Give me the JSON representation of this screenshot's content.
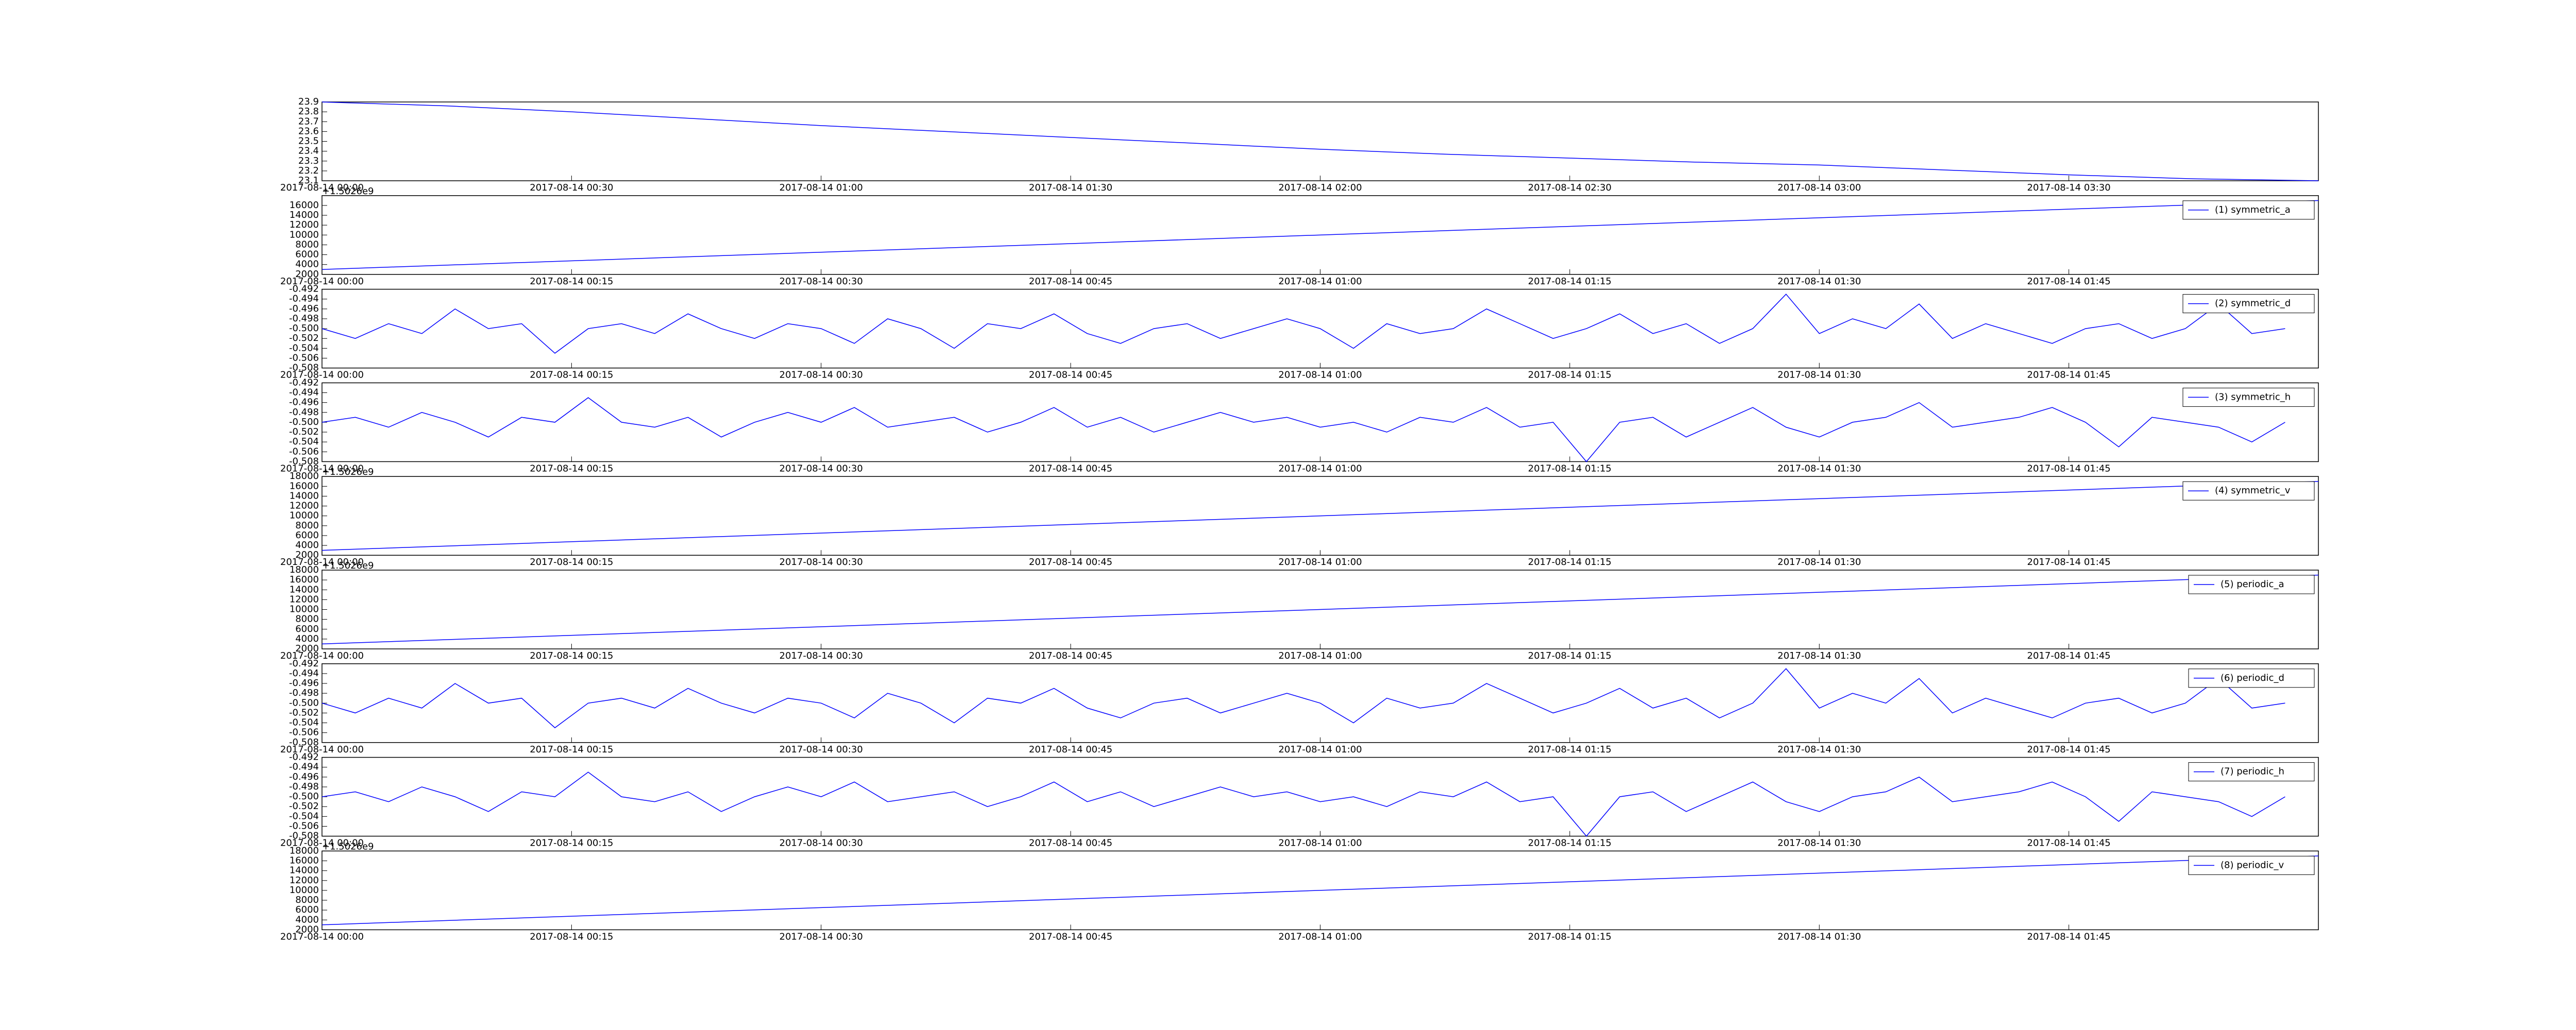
{
  "chart_data": [
    {
      "type": "line",
      "series": [
        {
          "color": "#0000ff",
          "values": [
            23.9,
            23.86,
            23.8,
            23.73,
            23.66,
            23.6,
            23.54,
            23.48,
            23.42,
            23.37,
            23.33,
            23.29,
            23.26,
            23.21,
            23.16,
            23.12,
            23.1
          ]
        }
      ],
      "x": [
        "2017-08-14 00:00",
        "2017-08-14 00:15",
        "2017-08-14 00:30",
        "2017-08-14 00:45",
        "2017-08-14 01:00",
        "2017-08-14 01:15",
        "2017-08-14 01:30",
        "2017-08-14 01:45",
        "2017-08-14 02:00",
        "2017-08-14 02:15",
        "2017-08-14 02:30",
        "2017-08-14 02:45",
        "2017-08-14 03:00",
        "2017-08-14 03:15",
        "2017-08-14 03:30",
        "2017-08-14 03:45",
        "2017-08-14 04:00"
      ],
      "xlim": [
        "2017-08-14 00:00",
        "2017-08-14 04:00"
      ],
      "xticks": [
        "2017-08-14 00:00",
        "2017-08-14 00:30",
        "2017-08-14 01:00",
        "2017-08-14 01:30",
        "2017-08-14 02:00",
        "2017-08-14 02:30",
        "2017-08-14 03:00",
        "2017-08-14 03:30"
      ],
      "ylim": [
        23.1,
        23.9
      ],
      "yticks": [
        23.1,
        23.2,
        23.3,
        23.4,
        23.5,
        23.6,
        23.7,
        23.8,
        23.9
      ]
    },
    {
      "type": "line",
      "offset_text": "+1.5026e9",
      "legend": "upper right",
      "series": [
        {
          "name": "(1) symmetric_a",
          "color": "#0000ff",
          "values": [
            3000,
            17000
          ]
        }
      ],
      "x": [
        "2017-08-14 00:00",
        "2017-08-14 02:00"
      ],
      "xlim": [
        "2017-08-14 00:00",
        "2017-08-14 02:00"
      ],
      "xticks": [
        "2017-08-14 00:00",
        "2017-08-14 00:15",
        "2017-08-14 00:30",
        "2017-08-14 00:45",
        "2017-08-14 01:00",
        "2017-08-14 01:15",
        "2017-08-14 01:30",
        "2017-08-14 01:45"
      ],
      "ylim": [
        2000,
        18000
      ],
      "yticks": [
        2000,
        4000,
        6000,
        8000,
        10000,
        12000,
        14000,
        16000
      ]
    },
    {
      "type": "line",
      "legend": "upper right",
      "series": [
        {
          "name": "(2) symmetric_d",
          "color": "#0000ff",
          "values": [
            -0.5,
            -0.502,
            -0.499,
            -0.501,
            -0.496,
            -0.5,
            -0.499,
            -0.505,
            -0.5,
            -0.499,
            -0.501,
            -0.497,
            -0.5,
            -0.502,
            -0.499,
            -0.5,
            -0.503,
            -0.498,
            -0.5,
            -0.504,
            -0.499,
            -0.5,
            -0.497,
            -0.501,
            -0.503,
            -0.5,
            -0.499,
            -0.502,
            -0.5,
            -0.498,
            -0.5,
            -0.504,
            -0.499,
            -0.501,
            -0.5,
            -0.496,
            -0.499,
            -0.502,
            -0.5,
            -0.497,
            -0.501,
            -0.499,
            -0.503,
            -0.5,
            -0.493,
            -0.501,
            -0.498,
            -0.5,
            -0.495,
            -0.502,
            -0.499,
            -0.501,
            -0.503,
            -0.5,
            -0.499,
            -0.502,
            -0.5,
            -0.495,
            -0.501,
            -0.5
          ]
        }
      ],
      "x": [
        "2017-08-14 00:00",
        "2017-08-14 00:02",
        "2017-08-14 00:04",
        "2017-08-14 00:06",
        "2017-08-14 00:08",
        "2017-08-14 00:10",
        "2017-08-14 00:12",
        "2017-08-14 00:14",
        "2017-08-14 00:16",
        "2017-08-14 00:18",
        "2017-08-14 00:20",
        "2017-08-14 00:22",
        "2017-08-14 00:24",
        "2017-08-14 00:26",
        "2017-08-14 00:28",
        "2017-08-14 00:30",
        "2017-08-14 00:32",
        "2017-08-14 00:34",
        "2017-08-14 00:36",
        "2017-08-14 00:38",
        "2017-08-14 00:40",
        "2017-08-14 00:42",
        "2017-08-14 00:44",
        "2017-08-14 00:46",
        "2017-08-14 00:48",
        "2017-08-14 00:50",
        "2017-08-14 00:52",
        "2017-08-14 00:54",
        "2017-08-14 00:56",
        "2017-08-14 00:58",
        "2017-08-14 01:00",
        "2017-08-14 01:02",
        "2017-08-14 01:04",
        "2017-08-14 01:06",
        "2017-08-14 01:08",
        "2017-08-14 01:10",
        "2017-08-14 01:12",
        "2017-08-14 01:14",
        "2017-08-14 01:16",
        "2017-08-14 01:18",
        "2017-08-14 01:20",
        "2017-08-14 01:22",
        "2017-08-14 01:24",
        "2017-08-14 01:26",
        "2017-08-14 01:28",
        "2017-08-14 01:30",
        "2017-08-14 01:32",
        "2017-08-14 01:34",
        "2017-08-14 01:36",
        "2017-08-14 01:38",
        "2017-08-14 01:40",
        "2017-08-14 01:42",
        "2017-08-14 01:44",
        "2017-08-14 01:46",
        "2017-08-14 01:48",
        "2017-08-14 01:50",
        "2017-08-14 01:52",
        "2017-08-14 01:54",
        "2017-08-14 01:56",
        "2017-08-14 01:58"
      ],
      "xlim": [
        "2017-08-14 00:00",
        "2017-08-14 02:00"
      ],
      "xticks": [
        "2017-08-14 00:00",
        "2017-08-14 00:15",
        "2017-08-14 00:30",
        "2017-08-14 00:45",
        "2017-08-14 01:00",
        "2017-08-14 01:15",
        "2017-08-14 01:30",
        "2017-08-14 01:45"
      ],
      "ylim": [
        -0.508,
        -0.492
      ],
      "yticks": [
        -0.508,
        -0.506,
        -0.504,
        -0.502,
        {
          "value": -0.5,
          "label": "-0.500"
        },
        -0.498,
        -0.496,
        -0.494,
        -0.492
      ]
    },
    {
      "type": "line",
      "legend": "upper right",
      "series": [
        {
          "name": "(3) symmetric_h",
          "color": "#0000ff",
          "values": [
            -0.5,
            -0.499,
            -0.501,
            -0.498,
            -0.5,
            -0.503,
            -0.499,
            -0.5,
            -0.495,
            -0.5,
            -0.501,
            -0.499,
            -0.503,
            -0.5,
            -0.498,
            -0.5,
            -0.497,
            -0.501,
            -0.5,
            -0.499,
            -0.502,
            -0.5,
            -0.497,
            -0.501,
            -0.499,
            -0.502,
            -0.5,
            -0.498,
            -0.5,
            -0.499,
            -0.501,
            -0.5,
            -0.502,
            -0.499,
            -0.5,
            -0.497,
            -0.501,
            -0.5,
            -0.508,
            -0.5,
            -0.499,
            -0.503,
            -0.5,
            -0.497,
            -0.501,
            -0.503,
            -0.5,
            -0.499,
            -0.496,
            -0.501,
            -0.5,
            -0.499,
            -0.497,
            -0.5,
            -0.505,
            -0.499,
            -0.5,
            -0.501,
            -0.504,
            -0.5
          ]
        }
      ],
      "x": [
        "2017-08-14 00:00",
        "2017-08-14 00:02",
        "2017-08-14 00:04",
        "2017-08-14 00:06",
        "2017-08-14 00:08",
        "2017-08-14 00:10",
        "2017-08-14 00:12",
        "2017-08-14 00:14",
        "2017-08-14 00:16",
        "2017-08-14 00:18",
        "2017-08-14 00:20",
        "2017-08-14 00:22",
        "2017-08-14 00:24",
        "2017-08-14 00:26",
        "2017-08-14 00:28",
        "2017-08-14 00:30",
        "2017-08-14 00:32",
        "2017-08-14 00:34",
        "2017-08-14 00:36",
        "2017-08-14 00:38",
        "2017-08-14 00:40",
        "2017-08-14 00:42",
        "2017-08-14 00:44",
        "2017-08-14 00:46",
        "2017-08-14 00:48",
        "2017-08-14 00:50",
        "2017-08-14 00:52",
        "2017-08-14 00:54",
        "2017-08-14 00:56",
        "2017-08-14 00:58",
        "2017-08-14 01:00",
        "2017-08-14 01:02",
        "2017-08-14 01:04",
        "2017-08-14 01:06",
        "2017-08-14 01:08",
        "2017-08-14 01:10",
        "2017-08-14 01:12",
        "2017-08-14 01:14",
        "2017-08-14 01:16",
        "2017-08-14 01:18",
        "2017-08-14 01:20",
        "2017-08-14 01:22",
        "2017-08-14 01:24",
        "2017-08-14 01:26",
        "2017-08-14 01:28",
        "2017-08-14 01:30",
        "2017-08-14 01:32",
        "2017-08-14 01:34",
        "2017-08-14 01:36",
        "2017-08-14 01:38",
        "2017-08-14 01:40",
        "2017-08-14 01:42",
        "2017-08-14 01:44",
        "2017-08-14 01:46",
        "2017-08-14 01:48",
        "2017-08-14 01:50",
        "2017-08-14 01:52",
        "2017-08-14 01:54",
        "2017-08-14 01:56",
        "2017-08-14 01:58"
      ],
      "xlim": [
        "2017-08-14 00:00",
        "2017-08-14 02:00"
      ],
      "xticks": [
        "2017-08-14 00:00",
        "2017-08-14 00:15",
        "2017-08-14 00:30",
        "2017-08-14 00:45",
        "2017-08-14 01:00",
        "2017-08-14 01:15",
        "2017-08-14 01:30",
        "2017-08-14 01:45"
      ],
      "ylim": [
        -0.508,
        -0.492
      ],
      "yticks": [
        -0.508,
        -0.506,
        -0.504,
        -0.502,
        {
          "value": -0.5,
          "label": "-0.500"
        },
        -0.498,
        -0.496,
        -0.494,
        -0.492
      ]
    },
    {
      "type": "line",
      "offset_text": "+1.5026e9",
      "legend": "upper right",
      "series": [
        {
          "name": "(4) symmetric_v",
          "color": "#0000ff",
          "values": [
            3000,
            17000
          ]
        }
      ],
      "x": [
        "2017-08-14 00:00",
        "2017-08-14 02:00"
      ],
      "xlim": [
        "2017-08-14 00:00",
        "2017-08-14 02:00"
      ],
      "xticks": [
        "2017-08-14 00:00",
        "2017-08-14 00:15",
        "2017-08-14 00:30",
        "2017-08-14 00:45",
        "2017-08-14 01:00",
        "2017-08-14 01:15",
        "2017-08-14 01:30",
        "2017-08-14 01:45"
      ],
      "ylim": [
        2000,
        18000
      ],
      "yticks": [
        2000,
        4000,
        6000,
        8000,
        10000,
        12000,
        14000,
        16000,
        18000
      ]
    },
    {
      "type": "line",
      "offset_text": "+1.5026e9",
      "legend": "upper right",
      "series": [
        {
          "name": "(5) periodic_a",
          "color": "#0000ff",
          "values": [
            3000,
            17000
          ]
        }
      ],
      "x": [
        "2017-08-14 00:00",
        "2017-08-14 02:00"
      ],
      "xlim": [
        "2017-08-14 00:00",
        "2017-08-14 02:00"
      ],
      "xticks": [
        "2017-08-14 00:00",
        "2017-08-14 00:15",
        "2017-08-14 00:30",
        "2017-08-14 00:45",
        "2017-08-14 01:00",
        "2017-08-14 01:15",
        "2017-08-14 01:30",
        "2017-08-14 01:45"
      ],
      "ylim": [
        2000,
        18000
      ],
      "yticks": [
        2000,
        4000,
        6000,
        8000,
        10000,
        12000,
        14000,
        16000,
        18000
      ]
    },
    {
      "type": "line",
      "legend": "upper right",
      "series": [
        {
          "name": "(6) periodic_d",
          "color": "#0000ff",
          "values": [
            -0.5,
            -0.502,
            -0.499,
            -0.501,
            -0.496,
            -0.5,
            -0.499,
            -0.505,
            -0.5,
            -0.499,
            -0.501,
            -0.497,
            -0.5,
            -0.502,
            -0.499,
            -0.5,
            -0.503,
            -0.498,
            -0.5,
            -0.504,
            -0.499,
            -0.5,
            -0.497,
            -0.501,
            -0.503,
            -0.5,
            -0.499,
            -0.502,
            -0.5,
            -0.498,
            -0.5,
            -0.504,
            -0.499,
            -0.501,
            -0.5,
            -0.496,
            -0.499,
            -0.502,
            -0.5,
            -0.497,
            -0.501,
            -0.499,
            -0.503,
            -0.5,
            -0.493,
            -0.501,
            -0.498,
            -0.5,
            -0.495,
            -0.502,
            -0.499,
            -0.501,
            -0.503,
            -0.5,
            -0.499,
            -0.502,
            -0.5,
            -0.495,
            -0.501,
            -0.5
          ]
        }
      ],
      "x": [
        "2017-08-14 00:00",
        "2017-08-14 00:02",
        "2017-08-14 00:04",
        "2017-08-14 00:06",
        "2017-08-14 00:08",
        "2017-08-14 00:10",
        "2017-08-14 00:12",
        "2017-08-14 00:14",
        "2017-08-14 00:16",
        "2017-08-14 00:18",
        "2017-08-14 00:20",
        "2017-08-14 00:22",
        "2017-08-14 00:24",
        "2017-08-14 00:26",
        "2017-08-14 00:28",
        "2017-08-14 00:30",
        "2017-08-14 00:32",
        "2017-08-14 00:34",
        "2017-08-14 00:36",
        "2017-08-14 00:38",
        "2017-08-14 00:40",
        "2017-08-14 00:42",
        "2017-08-14 00:44",
        "2017-08-14 00:46",
        "2017-08-14 00:48",
        "2017-08-14 00:50",
        "2017-08-14 00:52",
        "2017-08-14 00:54",
        "2017-08-14 00:56",
        "2017-08-14 00:58",
        "2017-08-14 01:00",
        "2017-08-14 01:02",
        "2017-08-14 01:04",
        "2017-08-14 01:06",
        "2017-08-14 01:08",
        "2017-08-14 01:10",
        "2017-08-14 01:12",
        "2017-08-14 01:14",
        "2017-08-14 01:16",
        "2017-08-14 01:18",
        "2017-08-14 01:20",
        "2017-08-14 01:22",
        "2017-08-14 01:24",
        "2017-08-14 01:26",
        "2017-08-14 01:28",
        "2017-08-14 01:30",
        "2017-08-14 01:32",
        "2017-08-14 01:34",
        "2017-08-14 01:36",
        "2017-08-14 01:38",
        "2017-08-14 01:40",
        "2017-08-14 01:42",
        "2017-08-14 01:44",
        "2017-08-14 01:46",
        "2017-08-14 01:48",
        "2017-08-14 01:50",
        "2017-08-14 01:52",
        "2017-08-14 01:54",
        "2017-08-14 01:56",
        "2017-08-14 01:58"
      ],
      "xlim": [
        "2017-08-14 00:00",
        "2017-08-14 02:00"
      ],
      "xticks": [
        "2017-08-14 00:00",
        "2017-08-14 00:15",
        "2017-08-14 00:30",
        "2017-08-14 00:45",
        "2017-08-14 01:00",
        "2017-08-14 01:15",
        "2017-08-14 01:30",
        "2017-08-14 01:45"
      ],
      "ylim": [
        -0.508,
        -0.492
      ],
      "yticks": [
        -0.508,
        -0.506,
        -0.504,
        -0.502,
        {
          "value": -0.5,
          "label": "-0.500"
        },
        -0.498,
        -0.496,
        -0.494,
        -0.492
      ]
    },
    {
      "type": "line",
      "legend": "upper right",
      "series": [
        {
          "name": "(7) periodic_h",
          "color": "#0000ff",
          "values": [
            -0.5,
            -0.499,
            -0.501,
            -0.498,
            -0.5,
            -0.503,
            -0.499,
            -0.5,
            -0.495,
            -0.5,
            -0.501,
            -0.499,
            -0.503,
            -0.5,
            -0.498,
            -0.5,
            -0.497,
            -0.501,
            -0.5,
            -0.499,
            -0.502,
            -0.5,
            -0.497,
            -0.501,
            -0.499,
            -0.502,
            -0.5,
            -0.498,
            -0.5,
            -0.499,
            -0.501,
            -0.5,
            -0.502,
            -0.499,
            -0.5,
            -0.497,
            -0.501,
            -0.5,
            -0.508,
            -0.5,
            -0.499,
            -0.503,
            -0.5,
            -0.497,
            -0.501,
            -0.503,
            -0.5,
            -0.499,
            -0.496,
            -0.501,
            -0.5,
            -0.499,
            -0.497,
            -0.5,
            -0.505,
            -0.499,
            -0.5,
            -0.501,
            -0.504,
            -0.5
          ]
        }
      ],
      "x": [
        "2017-08-14 00:00",
        "2017-08-14 00:02",
        "2017-08-14 00:04",
        "2017-08-14 00:06",
        "2017-08-14 00:08",
        "2017-08-14 00:10",
        "2017-08-14 00:12",
        "2017-08-14 00:14",
        "2017-08-14 00:16",
        "2017-08-14 00:18",
        "2017-08-14 00:20",
        "2017-08-14 00:22",
        "2017-08-14 00:24",
        "2017-08-14 00:26",
        "2017-08-14 00:28",
        "2017-08-14 00:30",
        "2017-08-14 00:32",
        "2017-08-14 00:34",
        "2017-08-14 00:36",
        "2017-08-14 00:38",
        "2017-08-14 00:40",
        "2017-08-14 00:42",
        "2017-08-14 00:44",
        "2017-08-14 00:46",
        "2017-08-14 00:48",
        "2017-08-14 00:50",
        "2017-08-14 00:52",
        "2017-08-14 00:54",
        "2017-08-14 00:56",
        "2017-08-14 00:58",
        "2017-08-14 01:00",
        "2017-08-14 01:02",
        "2017-08-14 01:04",
        "2017-08-14 01:06",
        "2017-08-14 01:08",
        "2017-08-14 01:10",
        "2017-08-14 01:12",
        "2017-08-14 01:14",
        "2017-08-14 01:16",
        "2017-08-14 01:18",
        "2017-08-14 01:20",
        "2017-08-14 01:22",
        "2017-08-14 01:24",
        "2017-08-14 01:26",
        "2017-08-14 01:28",
        "2017-08-14 01:30",
        "2017-08-14 01:32",
        "2017-08-14 01:34",
        "2017-08-14 01:36",
        "2017-08-14 01:38",
        "2017-08-14 01:40",
        "2017-08-14 01:42",
        "2017-08-14 01:44",
        "2017-08-14 01:46",
        "2017-08-14 01:48",
        "2017-08-14 01:50",
        "2017-08-14 01:52",
        "2017-08-14 01:54",
        "2017-08-14 01:56",
        "2017-08-14 01:58"
      ],
      "xlim": [
        "2017-08-14 00:00",
        "2017-08-14 02:00"
      ],
      "xticks": [
        "2017-08-14 00:00",
        "2017-08-14 00:15",
        "2017-08-14 00:30",
        "2017-08-14 00:45",
        "2017-08-14 01:00",
        "2017-08-14 01:15",
        "2017-08-14 01:30",
        "2017-08-14 01:45"
      ],
      "ylim": [
        -0.508,
        -0.492
      ],
      "yticks": [
        -0.508,
        -0.506,
        -0.504,
        -0.502,
        {
          "value": -0.5,
          "label": "-0.500"
        },
        -0.498,
        -0.496,
        -0.494,
        -0.492
      ]
    },
    {
      "type": "line",
      "offset_text": "+1.5026e9",
      "legend": "upper right",
      "series": [
        {
          "name": "(8) periodic_v",
          "color": "#0000ff",
          "values": [
            3000,
            17000
          ]
        }
      ],
      "x": [
        "2017-08-14 00:00",
        "2017-08-14 02:00"
      ],
      "xlim": [
        "2017-08-14 00:00",
        "2017-08-14 02:00"
      ],
      "xticks": [
        "2017-08-14 00:00",
        "2017-08-14 00:15",
        "2017-08-14 00:30",
        "2017-08-14 00:45",
        "2017-08-14 01:00",
        "2017-08-14 01:15",
        "2017-08-14 01:30",
        "2017-08-14 01:45"
      ],
      "ylim": [
        2000,
        18000
      ],
      "yticks": [
        2000,
        4000,
        6000,
        8000,
        10000,
        12000,
        14000,
        16000,
        18000
      ]
    }
  ]
}
